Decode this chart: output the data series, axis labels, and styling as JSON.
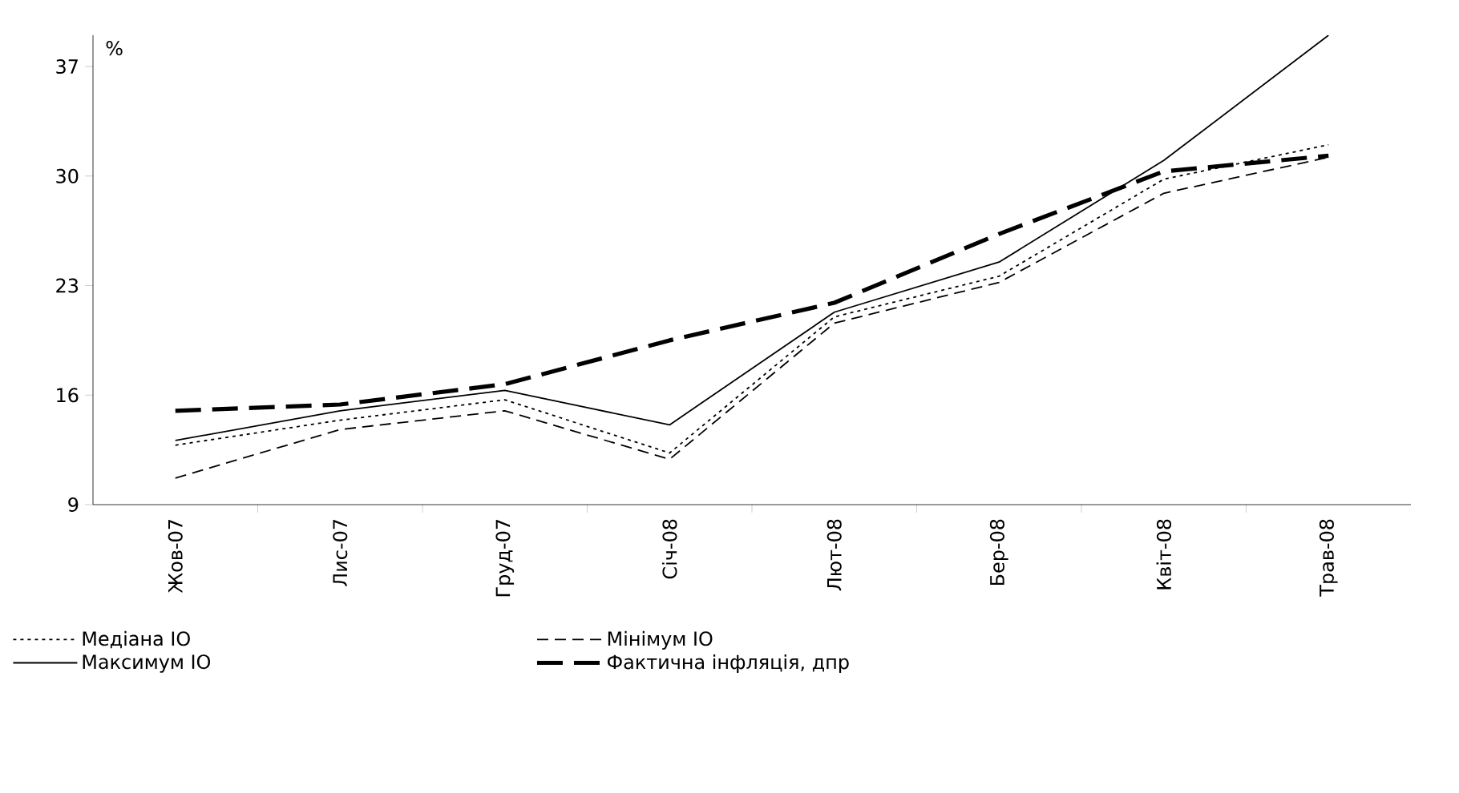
{
  "chart_data": {
    "type": "line",
    "ylabel": "%",
    "categories": [
      "Жов-07",
      "Лис-07",
      "Груд-07",
      "Січ-08",
      "Лют-08",
      "Бер-08",
      "Квіт-08",
      "Трав-08"
    ],
    "series": [
      {
        "name": "Медіана ІО",
        "color": "#000000",
        "line_style": "dotted",
        "values": [
          12.8,
          14.4,
          15.7,
          12.3,
          21.0,
          23.6,
          29.8,
          32.0
        ]
      },
      {
        "name": "Мінімум ІО",
        "color": "#000000",
        "line_style": "dashed",
        "values": [
          10.7,
          13.8,
          15.0,
          11.9,
          20.6,
          23.2,
          28.9,
          31.2
        ]
      },
      {
        "name": "Максимум ІО",
        "color": "#000000",
        "line_style": "solid",
        "values": [
          13.1,
          15.0,
          16.3,
          14.1,
          21.3,
          24.5,
          31.0,
          39.0
        ]
      },
      {
        "name": "Фактична інфляція, дпр",
        "color": "#000000",
        "line_style": "dashed",
        "values": [
          15.0,
          15.4,
          16.7,
          19.5,
          21.9,
          26.3,
          30.3,
          31.3
        ]
      }
    ],
    "ylim": [
      9,
      39
    ],
    "yticks": [
      9,
      16,
      23,
      30,
      37
    ],
    "grid": false,
    "legend": "bottom",
    "marker": "none"
  }
}
